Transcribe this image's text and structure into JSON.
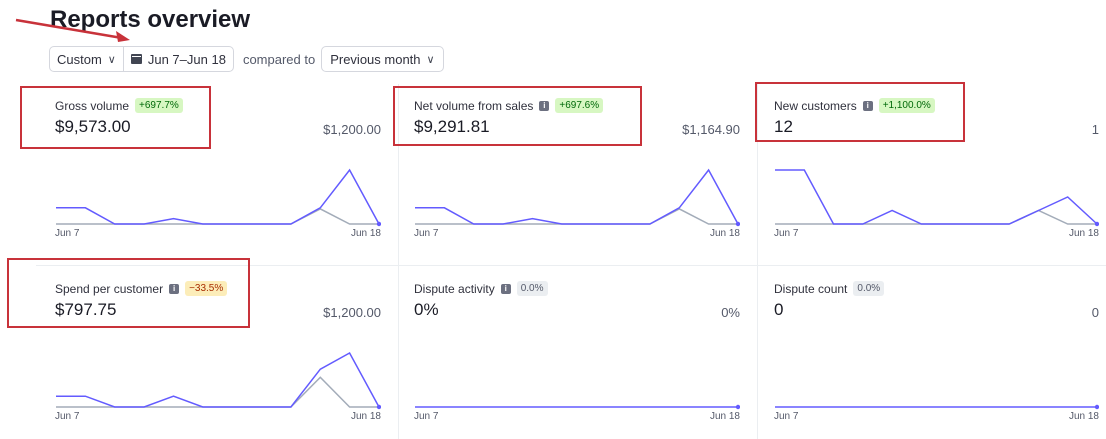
{
  "page": {
    "title": "Reports overview"
  },
  "filters": {
    "range_type": "Custom",
    "date_range": "Jun 7–Jun 18",
    "compared_label": "compared to",
    "comparison": "Previous month"
  },
  "colors": {
    "current": "#635bff",
    "previous": "#a3acb9",
    "highlight": "#c8323a"
  },
  "cards": [
    {
      "name": "Gross volume",
      "info": false,
      "change": "+697.7%",
      "change_type": "positive",
      "value": "$9,573.00",
      "previous_value": "$1,200.00",
      "x_start": "Jun 7",
      "x_end": "Jun 18"
    },
    {
      "name": "Net volume from sales",
      "info": true,
      "change": "+697.6%",
      "change_type": "positive",
      "value": "$9,291.81",
      "previous_value": "$1,164.90",
      "x_start": "Jun 7",
      "x_end": "Jun 18"
    },
    {
      "name": "New customers",
      "info": true,
      "change": "+1,100.0%",
      "change_type": "positive",
      "value": "12",
      "previous_value": "1",
      "x_start": "Jun 7",
      "x_end": "Jun 18"
    },
    {
      "name": "Spend per customer",
      "info": true,
      "change": "−33.5%",
      "change_type": "negative",
      "value": "$797.75",
      "previous_value": "$1,200.00",
      "x_start": "Jun 7",
      "x_end": "Jun 18"
    },
    {
      "name": "Dispute activity",
      "info": true,
      "change": "0.0%",
      "change_type": "neutral",
      "value": "0%",
      "previous_value": "0%",
      "x_start": "Jun 7",
      "x_end": "Jun 18"
    },
    {
      "name": "Dispute count",
      "info": false,
      "change": "0.0%",
      "change_type": "neutral",
      "value": "0",
      "previous_value": "0",
      "x_start": "Jun 7",
      "x_end": "Jun 18"
    }
  ],
  "chart_data": [
    {
      "type": "line",
      "series": [
        {
          "values": [
            0.3,
            0.3,
            0,
            0,
            0.1,
            0,
            0,
            0,
            0,
            0.3,
            1,
            0
          ]
        },
        {
          "values": [
            0,
            0,
            0,
            0,
            0,
            0,
            0,
            0,
            0,
            0.28,
            0,
            0
          ]
        }
      ]
    },
    {
      "type": "line",
      "series": [
        {
          "values": [
            0.3,
            0.3,
            0,
            0,
            0.1,
            0,
            0,
            0,
            0,
            0.3,
            1,
            0
          ]
        },
        {
          "values": [
            0,
            0,
            0,
            0,
            0,
            0,
            0,
            0,
            0,
            0.28,
            0,
            0
          ]
        }
      ]
    },
    {
      "type": "line",
      "series": [
        {
          "values": [
            1,
            1,
            0,
            0,
            0.25,
            0,
            0,
            0,
            0,
            0.25,
            0.5,
            0
          ]
        },
        {
          "values": [
            0,
            0,
            0,
            0,
            0,
            0,
            0,
            0,
            0,
            0.25,
            0,
            0
          ]
        }
      ]
    },
    {
      "type": "line",
      "series": [
        {
          "values": [
            0.2,
            0.2,
            0,
            0,
            0.2,
            0,
            0,
            0,
            0,
            0.7,
            1,
            0
          ]
        },
        {
          "values": [
            0,
            0,
            0,
            0,
            0,
            0,
            0,
            0,
            0,
            0.55,
            0,
            0
          ]
        }
      ]
    },
    {
      "type": "line",
      "series": [
        {
          "values": [
            0,
            0,
            0,
            0,
            0,
            0,
            0,
            0,
            0,
            0,
            0,
            0
          ]
        }
      ]
    },
    {
      "type": "line",
      "series": [
        {
          "values": [
            0,
            0,
            0,
            0,
            0,
            0,
            0,
            0,
            0,
            0,
            0,
            0
          ]
        }
      ]
    }
  ]
}
